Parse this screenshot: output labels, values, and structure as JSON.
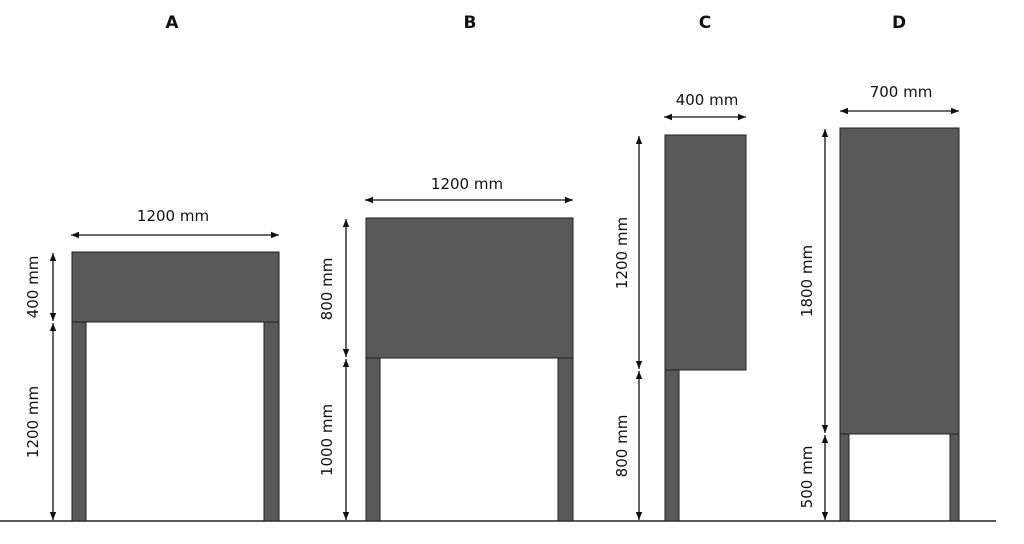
{
  "colors": {
    "panel": "#595959",
    "post": "#595959",
    "line": "#111111",
    "background": "#ffffff"
  },
  "variants": [
    {
      "label": "A",
      "width_label": "1200 mm",
      "sign_height_label": "400 mm",
      "post_height_label": "1200 mm"
    },
    {
      "label": "B",
      "width_label": "1200 mm",
      "sign_height_label": "800 mm",
      "post_height_label": "1000 mm"
    },
    {
      "label": "C",
      "width_label": "400 mm",
      "sign_height_label": "1200 mm",
      "post_height_label": "800 mm"
    },
    {
      "label": "D",
      "width_label": "700 mm",
      "sign_height_label": "1800 mm",
      "post_height_label": "500 mm"
    }
  ]
}
